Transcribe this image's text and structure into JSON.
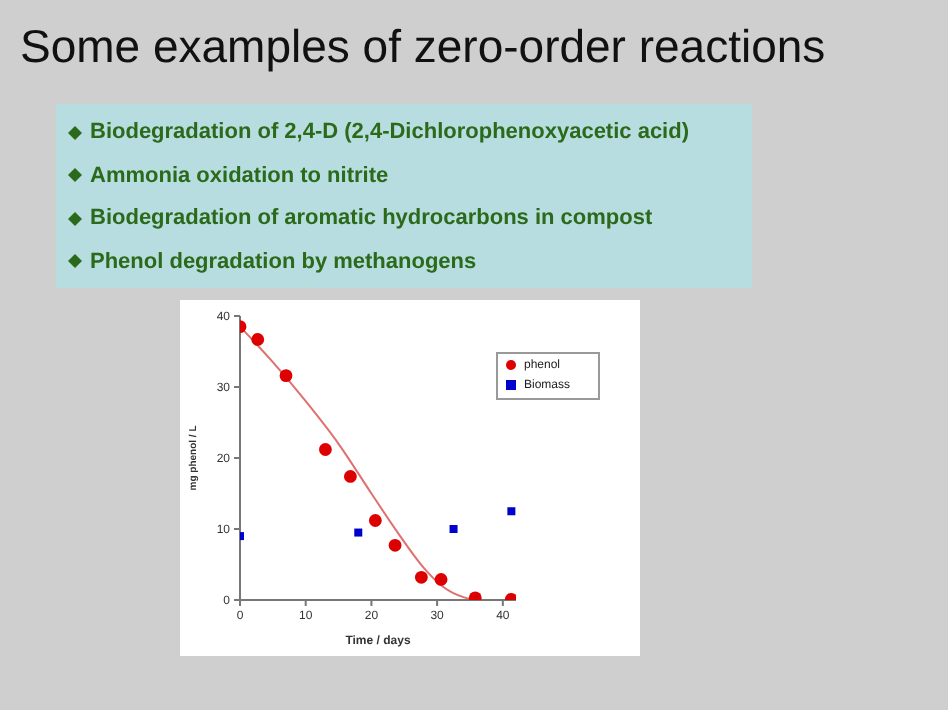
{
  "chart_data": {
    "type": "scatter",
    "title": "Some examples of zero-order reactions",
    "annotations": [
      "Biodegradation of 2,4-D (2,4-Dichlorophenoxyacetic acid)",
      "Ammonia oxidation to nitrite",
      "Biodegradation of aromatic hydrocarbons in compost",
      "Phenol degradation by methanogens"
    ],
    "xlabel": "Time / days",
    "ylabel": "mg phenol / L",
    "xlim": [
      0,
      42
    ],
    "xticks": [
      0,
      10,
      20,
      30,
      40
    ],
    "ylim": [
      0,
      40
    ],
    "yticks": [
      0,
      10,
      20,
      30,
      40
    ],
    "legend": "top right",
    "grid": false,
    "series": [
      {
        "type": "line",
        "color": "#e07070",
        "marker": "none",
        "x": [
          0,
          5,
          10,
          15,
          20,
          24,
          28,
          31,
          34,
          36,
          41
        ],
        "values": [
          38.5,
          33.5,
          28,
          22,
          15,
          9.5,
          4.5,
          1.8,
          0.4,
          0,
          0
        ]
      },
      {
        "name": "phenol",
        "color": "#dd0000",
        "marker": "circle",
        "x": [
          0,
          2.7,
          7,
          13,
          16.8,
          20.6,
          23.6,
          27.6,
          30.6,
          35.8,
          41.3
        ],
        "values": [
          38.5,
          36.7,
          31.6,
          21.2,
          17.4,
          11.2,
          7.7,
          3.2,
          2.9,
          0.3,
          0.1
        ]
      },
      {
        "name": "Biomass",
        "color": "#0000cc",
        "marker": "square",
        "x": [
          0,
          18,
          32.5,
          41.3
        ],
        "values": [
          9,
          9.5,
          10,
          12.5
        ]
      }
    ]
  }
}
